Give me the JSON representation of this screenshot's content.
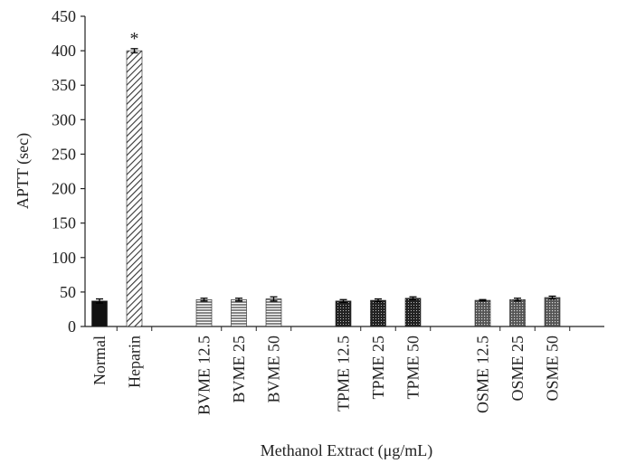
{
  "chart_data": {
    "type": "bar",
    "title": "",
    "xlabel": "Methanol Extract (μg/mL)",
    "ylabel": "APTT (sec)",
    "ylim": [
      0,
      450
    ],
    "yticks": [
      "0",
      "50",
      "100",
      "150",
      "200",
      "250",
      "300",
      "350",
      "400",
      "450"
    ],
    "grid": false,
    "categories": [
      "Normal",
      "Heparin",
      "BVME 12.5",
      "BVME 25",
      "BVME 50",
      "TPME 12.5",
      "TPME 25",
      "TPME 50",
      "OSME 12.5",
      "OSME 25",
      "OSME 50"
    ],
    "values": [
      37,
      400,
      39,
      39,
      40,
      37,
      38,
      41,
      38,
      39,
      42
    ],
    "errors": [
      3,
      3,
      2,
      2,
      3,
      2,
      2,
      2,
      1,
      2,
      2
    ],
    "annotations": [
      {
        "category": "Heparin",
        "text": "*"
      }
    ],
    "patterns": [
      "solid-black",
      "diagonal",
      "horizontal",
      "horizontal",
      "horizontal",
      "dots-dark",
      "dots-dark",
      "dots-dark",
      "dots-light",
      "dots-light",
      "dots-light"
    ]
  }
}
